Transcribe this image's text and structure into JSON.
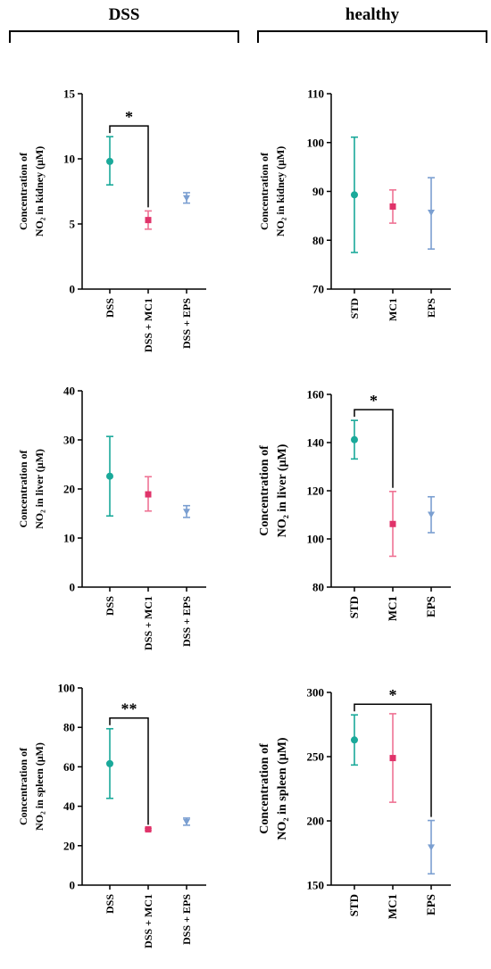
{
  "header": {
    "left_label": "DSS",
    "right_label": "healthy"
  },
  "colors": {
    "teal": "#1aa99a",
    "pink": "#e0336a",
    "pink_light": "#ef7394",
    "blue": "#7b9fd1"
  },
  "chart_data": [
    {
      "type": "scatter",
      "ylabel_line1": "Concentration of",
      "ylabel_line2": "NO₂ in kidney (μM)",
      "ylim": [
        0,
        15
      ],
      "yticks": [
        "0",
        "5",
        "10",
        "15"
      ],
      "categories": [
        "DSS",
        "DSS + MC1",
        "DSS + EPS"
      ],
      "points": [
        {
          "mean": 9.8,
          "low": 8.0,
          "high": 11.7
        },
        {
          "mean": 5.3,
          "low": 4.6,
          "high": 6.0
        },
        {
          "mean": 7.0,
          "low": 6.6,
          "high": 7.4
        }
      ],
      "significance": [
        {
          "from": 0,
          "to": 1,
          "label": "*"
        }
      ]
    },
    {
      "type": "scatter",
      "ylabel_line1": "Concentration of",
      "ylabel_line2": "NO₂ in kidney (μM)",
      "ylim": [
        70,
        110
      ],
      "yticks": [
        "70",
        "80",
        "90",
        "100",
        "110"
      ],
      "categories": [
        "STD",
        "MC1",
        "EPS"
      ],
      "points": [
        {
          "mean": 89.3,
          "low": 77.5,
          "high": 101.1
        },
        {
          "mean": 86.9,
          "low": 83.5,
          "high": 90.3
        },
        {
          "mean": 85.7,
          "low": 78.2,
          "high": 92.8
        }
      ],
      "significance": []
    },
    {
      "type": "scatter",
      "ylabel_line1": "Concentration of",
      "ylabel_line2": "NO₂ in liver (μM)",
      "ylim": [
        0,
        40
      ],
      "yticks": [
        "0",
        "10",
        "20",
        "30",
        "40"
      ],
      "categories": [
        "DSS",
        "DSS + MC1",
        "DSS + EPS"
      ],
      "points": [
        {
          "mean": 22.6,
          "low": 14.5,
          "high": 30.7
        },
        {
          "mean": 18.9,
          "low": 15.5,
          "high": 22.5
        },
        {
          "mean": 15.4,
          "low": 14.2,
          "high": 16.6
        }
      ],
      "significance": []
    },
    {
      "type": "scatter",
      "ylabel_line1": "Concentration of",
      "ylabel_line2": "NO₂ in liver (μM)",
      "ylim": [
        80,
        160
      ],
      "yticks": [
        "80",
        "100",
        "120",
        "140",
        "160"
      ],
      "categories": [
        "STD",
        "MC1",
        "EPS"
      ],
      "points": [
        {
          "mean": 141.2,
          "low": 133.2,
          "high": 149.2
        },
        {
          "mean": 106.2,
          "low": 92.8,
          "high": 119.7
        },
        {
          "mean": 110.2,
          "low": 102.6,
          "high": 117.5
        }
      ],
      "significance": [
        {
          "from": 0,
          "to": 1,
          "label": "*"
        }
      ]
    },
    {
      "type": "scatter",
      "ylabel_line1": "Concentration of",
      "ylabel_line2": "NO₂ in spleen (μM)",
      "ylim": [
        0,
        100
      ],
      "yticks": [
        "0",
        "20",
        "40",
        "60",
        "80",
        "100"
      ],
      "categories": [
        "DSS",
        "DSS + MC1",
        "DSS + EPS"
      ],
      "points": [
        {
          "mean": 61.6,
          "low": 44.0,
          "high": 79.3
        },
        {
          "mean": 28.3,
          "low": 27.8,
          "high": 28.8
        },
        {
          "mean": 32.2,
          "low": 30.4,
          "high": 34.0
        }
      ],
      "significance": [
        {
          "from": 0,
          "to": 1,
          "label": "**"
        }
      ]
    },
    {
      "type": "scatter",
      "ylabel_line1": "Concentration of",
      "ylabel_line2": "NO₂ in spleen (μM)",
      "ylim": [
        150,
        300
      ],
      "yticks": [
        "150",
        "200",
        "250",
        "300"
      ],
      "categories": [
        "STD",
        "MC1",
        "EPS"
      ],
      "points": [
        {
          "mean": 263.0,
          "low": 243.5,
          "high": 282.5
        },
        {
          "mean": 248.9,
          "low": 214.5,
          "high": 283.4
        },
        {
          "mean": 179.6,
          "low": 158.8,
          "high": 200.3
        }
      ],
      "significance": [
        {
          "from": 0,
          "to": 2,
          "label": "*"
        }
      ]
    }
  ]
}
